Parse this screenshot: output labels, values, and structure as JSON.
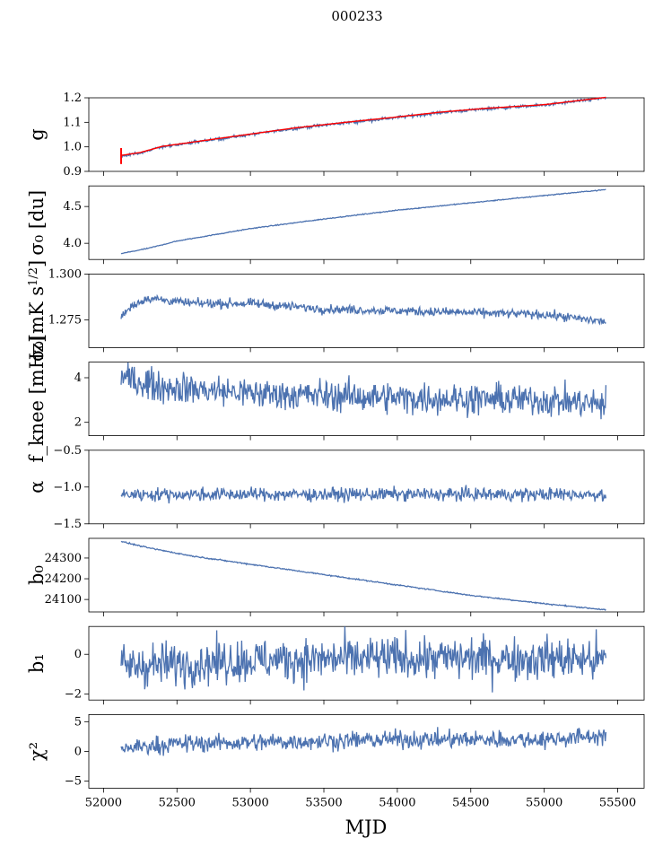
{
  "title": "000233",
  "xlabel": "MJD",
  "chart_data": {
    "type": "line",
    "x_range": [
      51900,
      55680
    ],
    "x_ticks": [
      52000,
      52500,
      53000,
      53500,
      54000,
      54500,
      55000,
      55500
    ],
    "x_tick_labels": [
      "52000",
      "52500",
      "53000",
      "53500",
      "54000",
      "54500",
      "55000",
      "55500"
    ],
    "series_color": "#4c72b0",
    "overlay_color": "#ff0000",
    "data_x_start": 52120,
    "data_x_end": 55420,
    "panels": [
      {
        "ylabel": "g",
        "ylim": [
          0.9,
          1.2
        ],
        "yticks": [
          0.9,
          1.0,
          1.1,
          1.2
        ],
        "ytick_labels": [
          "0.9",
          "1.0",
          "1.1",
          "1.2"
        ],
        "trend": [
          [
            52120,
            0.963
          ],
          [
            52250,
            0.975
          ],
          [
            52400,
            1.0
          ],
          [
            52700,
            1.025
          ],
          [
            53000,
            1.05
          ],
          [
            53300,
            1.075
          ],
          [
            53600,
            1.095
          ],
          [
            54000,
            1.12
          ],
          [
            54300,
            1.14
          ],
          [
            54600,
            1.155
          ],
          [
            55000,
            1.17
          ],
          [
            55420,
            1.2
          ]
        ],
        "noise": 0.003,
        "overlay": true
      },
      {
        "ylabel": "σ₀ [du]",
        "ylim": [
          3.78,
          4.78
        ],
        "yticks": [
          4.0,
          4.5
        ],
        "ytick_labels": [
          "4.0",
          "4.5"
        ],
        "trend": [
          [
            52120,
            3.86
          ],
          [
            52300,
            3.93
          ],
          [
            52500,
            4.03
          ],
          [
            53000,
            4.2
          ],
          [
            53500,
            4.33
          ],
          [
            54000,
            4.45
          ],
          [
            54500,
            4.55
          ],
          [
            55000,
            4.65
          ],
          [
            55420,
            4.73
          ]
        ],
        "noise": 0.003
      },
      {
        "ylabel": "σ₀[mK s^1/2]",
        "ylim": [
          1.26,
          1.3
        ],
        "yticks": [
          1.275,
          1.3
        ],
        "ytick_labels": [
          "1.275",
          "1.300"
        ],
        "trend": [
          [
            52120,
            1.277
          ],
          [
            52200,
            1.283
          ],
          [
            52300,
            1.287
          ],
          [
            52600,
            1.284
          ],
          [
            53000,
            1.284
          ],
          [
            53500,
            1.281
          ],
          [
            54000,
            1.28
          ],
          [
            54500,
            1.279
          ],
          [
            55000,
            1.278
          ],
          [
            55420,
            1.274
          ]
        ],
        "noise": 0.0012
      },
      {
        "ylabel": "f_knee [mHz]",
        "ylim": [
          1.4,
          4.7
        ],
        "yticks": [
          2,
          4
        ],
        "ytick_labels": [
          "2",
          "4"
        ],
        "trend": [
          [
            52120,
            4.0
          ],
          [
            52400,
            3.6
          ],
          [
            53000,
            3.3
          ],
          [
            54000,
            3.1
          ],
          [
            55000,
            3.0
          ],
          [
            55420,
            2.8
          ]
        ],
        "noise": 0.35
      },
      {
        "ylabel": "α",
        "ylim": [
          -1.5,
          -0.5
        ],
        "yticks": [
          -1.5,
          -1.0,
          -0.5
        ],
        "ytick_labels": [
          "−1.5",
          "−1.0",
          "−0.5"
        ],
        "trend": [
          [
            52120,
            -1.1
          ],
          [
            55420,
            -1.1
          ]
        ],
        "noise": 0.045
      },
      {
        "ylabel": "b₀",
        "ylim": [
          24040,
          24395
        ],
        "yticks": [
          24100,
          24200,
          24300
        ],
        "ytick_labels": [
          "24100",
          "24200",
          "24300"
        ],
        "trend": [
          [
            52120,
            24380
          ],
          [
            52300,
            24350
          ],
          [
            52600,
            24310
          ],
          [
            53000,
            24270
          ],
          [
            53500,
            24220
          ],
          [
            54000,
            24170
          ],
          [
            54500,
            24120
          ],
          [
            55000,
            24080
          ],
          [
            55420,
            24050
          ]
        ],
        "noise": 1.5
      },
      {
        "ylabel": "b₁",
        "ylim": [
          -2.3,
          1.4
        ],
        "yticks": [
          -2,
          0
        ],
        "ytick_labels": [
          "−2",
          "0"
        ],
        "trend": [
          [
            52120,
            -0.6
          ],
          [
            53000,
            -0.3
          ],
          [
            54000,
            -0.2
          ],
          [
            55000,
            -0.2
          ],
          [
            55420,
            -0.3
          ]
        ],
        "noise": 0.55
      },
      {
        "ylabel": "χ²",
        "ylim": [
          -6.2,
          6.2
        ],
        "yticks": [
          -5,
          0,
          5
        ],
        "ytick_labels": [
          "−5",
          "0",
          "5"
        ],
        "trend": [
          [
            52120,
            0.5
          ],
          [
            52500,
            1.3
          ],
          [
            53000,
            1.5
          ],
          [
            54000,
            2.0
          ],
          [
            55000,
            2.0
          ],
          [
            55420,
            2.7
          ]
        ],
        "noise": 0.75
      }
    ]
  }
}
